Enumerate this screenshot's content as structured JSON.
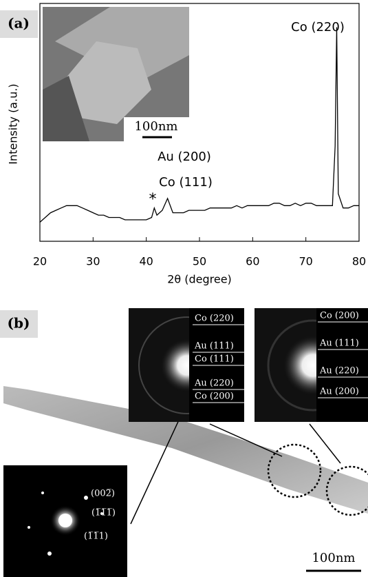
{
  "chart_data": {
    "type": "line",
    "panel_label": "(a)",
    "x_label": "2θ (degree)",
    "y_label": "Intensity (a.u.)",
    "xlim": [
      20,
      80
    ],
    "xticks": [
      20,
      30,
      40,
      50,
      60,
      70,
      80
    ],
    "ylim": [
      0,
      100
    ],
    "color": "#000000",
    "x": [
      20,
      21,
      22,
      23,
      24,
      25,
      26,
      27,
      28,
      29,
      30,
      31,
      32,
      33,
      34,
      35,
      36,
      37,
      38,
      39,
      40,
      41,
      41.5,
      42,
      43,
      44,
      45,
      46,
      47,
      48,
      49,
      50,
      51,
      52,
      53,
      54,
      55,
      56,
      57,
      58,
      59,
      60,
      61,
      62,
      63,
      64,
      65,
      66,
      67,
      68,
      69,
      70,
      71,
      72,
      73,
      74,
      75,
      75.5,
      75.8,
      76.1,
      77,
      78,
      79,
      80
    ],
    "values": [
      8,
      10,
      12,
      13,
      14,
      15,
      15,
      15,
      14,
      13,
      12,
      11,
      11,
      10,
      10,
      10,
      9,
      9,
      9,
      9,
      9,
      10,
      14,
      11,
      13,
      18,
      12,
      12,
      12,
      13,
      13,
      13,
      13,
      14,
      14,
      14,
      14,
      14,
      15,
      14,
      15,
      15,
      15,
      15,
      15,
      16,
      16,
      15,
      15,
      16,
      15,
      16,
      16,
      15,
      15,
      15,
      15,
      40,
      90,
      20,
      14,
      14,
      15,
      15
    ],
    "annotations": [
      "Co (220)",
      "Au (200)",
      "Co (111)",
      "*"
    ],
    "inset_scale": "100nm"
  },
  "panel_b": {
    "label": "(b)",
    "saed_1": [
      "Co (220)",
      "Au (111)",
      "Co (111)",
      "Au (220)",
      "Co (200)"
    ],
    "saed_2": [
      "Co (200)",
      "Au (111)",
      "Au (220)",
      "Au (200)"
    ],
    "saed_3": [
      "(002̅)",
      "(1̅1̅1̅)",
      "(1̅1̅1)"
    ],
    "scale": "100nm"
  }
}
